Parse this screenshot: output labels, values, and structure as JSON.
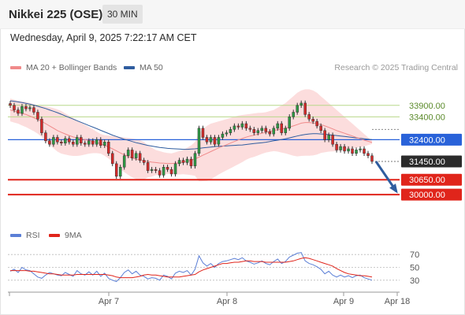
{
  "header": {
    "title": "Nikkei 225 (OSE)",
    "timeframe": "30 MIN",
    "datetime": "Wednesday, April 9, 2025 7:22:17 AM CET"
  },
  "legend": {
    "ma20": "MA 20 + Bollinger Bands",
    "ma50": "MA 50",
    "rsi": "RSI",
    "ma9": "9MA",
    "credit": "Research © 2025 Trading Central"
  },
  "colors": {
    "ma20": "#f08a8a",
    "bands": "#fcd9d9",
    "ma50": "#2f5d9f",
    "resistance": "#b8d88a",
    "pivot": "#2962d9",
    "support": "#e0251b",
    "rsi": "#5b7fd6",
    "rsi_ma": "#e0251b",
    "candle_up": "#2e9a44",
    "candle_down": "#d42a2a",
    "arrow": "#2f5d9f"
  },
  "chart_data": {
    "type": "candlestick",
    "x_ticks": [
      "Apr 7",
      "Apr 8",
      "Apr 9",
      "Apr 18"
    ],
    "ylim": [
      28800,
      35200
    ],
    "levels": [
      {
        "label": "33900.00",
        "value": 33900,
        "kind": "resistance"
      },
      {
        "label": "33400.00",
        "value": 33400,
        "kind": "resistance"
      },
      {
        "label": "32400.00",
        "value": 32400,
        "kind": "pivot"
      },
      {
        "label": "31450.00",
        "value": 31450,
        "kind": "last"
      },
      {
        "label": "30650.00",
        "value": 30650,
        "kind": "support"
      },
      {
        "label": "30000.00",
        "value": 30000,
        "kind": "support"
      }
    ],
    "close": [
      33900,
      33700,
      33550,
      33850,
      33750,
      33800,
      33600,
      33300,
      32700,
      32350,
      32200,
      32500,
      32300,
      32250,
      32450,
      32300,
      32200,
      32500,
      32250,
      32200,
      32350,
      32200,
      32400,
      32150,
      32300,
      31800,
      31350,
      30800,
      31200,
      31700,
      31950,
      31600,
      31800,
      31500,
      31400,
      31050,
      31100,
      31050,
      30850,
      31200,
      31100,
      30900,
      31350,
      31500,
      31400,
      31550,
      31250,
      31800,
      32900,
      32500,
      32300,
      32500,
      32200,
      32500,
      32650,
      32700,
      32850,
      33000,
      32950,
      33100,
      32900,
      32850,
      32700,
      32800,
      32900,
      32750,
      32650,
      32900,
      33100,
      32700,
      32900,
      33400,
      33600,
      33900,
      34000,
      33500,
      33300,
      33200,
      33000,
      32800,
      32400,
      32600,
      32200,
      31950,
      32100,
      31900,
      32000,
      31800,
      31950,
      32000,
      31800,
      31700,
      31450
    ],
    "ma20": [
      33700,
      33650,
      33600,
      33550,
      33500,
      33430,
      33360,
      33280,
      33200,
      33100,
      33000,
      32900,
      32800,
      32720,
      32650,
      32580,
      32520,
      32470,
      32430,
      32400,
      32370,
      32330,
      32280,
      32220,
      32150,
      32080,
      32000,
      31910,
      31820,
      31740,
      31670,
      31600,
      31550,
      31510,
      31480,
      31450,
      31420,
      31400,
      31380,
      31370,
      31360,
      31360,
      31370,
      31390,
      31420,
      31460,
      31500,
      31560,
      31640,
      31720,
      31800,
      31880,
      31960,
      32040,
      32110,
      32180,
      32250,
      32320,
      32390,
      32450,
      32510,
      32560,
      32600,
      32640,
      32680,
      32720,
      32760,
      32800,
      32840,
      32870,
      32900,
      32950,
      33000,
      33060,
      33120,
      33150,
      33150,
      33130,
      33100,
      33060,
      33000,
      32940,
      32870,
      32800,
      32740,
      32680,
      32620,
      32560,
      32500,
      32440,
      32380,
      32330,
      32280
    ],
    "bb_upper": [
      34200,
      34150,
      34100,
      34080,
      34050,
      34000,
      33950,
      33900,
      33880,
      33850,
      33820,
      33780,
      33720,
      33650,
      33550,
      33450,
      33350,
      33250,
      33150,
      33050,
      32950,
      32850,
      32750,
      32650,
      32600,
      32580,
      32560,
      32540,
      32520,
      32500,
      32480,
      32450,
      32420,
      32380,
      32300,
      32150,
      32050,
      31950,
      31900,
      31850,
      31820,
      31800,
      31850,
      31900,
      31950,
      32050,
      32150,
      32300,
      32700,
      32850,
      33000,
      33100,
      33150,
      33200,
      33250,
      33300,
      33350,
      33400,
      33450,
      33480,
      33500,
      33520,
      33550,
      33570,
      33580,
      33600,
      33650,
      33700,
      33800,
      33900,
      34000,
      34150,
      34300,
      34450,
      34550,
      34600,
      34600,
      34550,
      34450,
      34300,
      34150,
      34000,
      33850,
      33700,
      33550,
      33400,
      33250,
      33100,
      32950,
      32800,
      32650,
      32500,
      32350
    ],
    "bb_lower": [
      33200,
      33150,
      33100,
      33020,
      32950,
      32860,
      32770,
      32660,
      32520,
      32350,
      32180,
      32020,
      31880,
      31790,
      31750,
      31710,
      31690,
      31690,
      31710,
      31750,
      31790,
      31810,
      31810,
      31790,
      31700,
      31580,
      31440,
      31280,
      31120,
      30980,
      30860,
      30750,
      30680,
      30640,
      30660,
      30750,
      30790,
      30850,
      30860,
      30890,
      30900,
      30920,
      30890,
      30880,
      30890,
      30870,
      30850,
      30820,
      30580,
      30590,
      30600,
      30660,
      30770,
      30880,
      30970,
      31060,
      31150,
      31240,
      31330,
      31420,
      31520,
      31600,
      31650,
      31710,
      31780,
      31840,
      31870,
      31900,
      31880,
      31840,
      31800,
      31750,
      31700,
      31670,
      31690,
      31700,
      31700,
      31710,
      31750,
      31820,
      31850,
      31880,
      31890,
      31900,
      31930,
      31960,
      31990,
      32020,
      32050,
      32080,
      32110,
      32160,
      32210
    ],
    "ma50": [
      34100,
      34080,
      34050,
      34020,
      33990,
      33950,
      33910,
      33860,
      33810,
      33760,
      33700,
      33640,
      33580,
      33510,
      33440,
      33370,
      33300,
      33230,
      33160,
      33090,
      33020,
      32950,
      32880,
      32810,
      32740,
      32670,
      32600,
      32540,
      32480,
      32420,
      32370,
      32320,
      32270,
      32230,
      32190,
      32150,
      32120,
      32090,
      32060,
      32040,
      32020,
      32010,
      32000,
      31990,
      31980,
      31980,
      31990,
      32000,
      32020,
      32040,
      32060,
      32080,
      32100,
      32110,
      32120,
      32130,
      32140,
      32150,
      32160,
      32170,
      32190,
      32210,
      32230,
      32250,
      32270,
      32290,
      32320,
      32350,
      32380,
      32410,
      32440,
      32480,
      32520,
      32560,
      32600,
      32630,
      32650,
      32660,
      32660,
      32650,
      32640,
      32620,
      32600,
      32580,
      32560,
      32540,
      32520,
      32500,
      32480,
      32460,
      32440,
      32420,
      32400
    ],
    "rsi": {
      "ylim": [
        20,
        80
      ],
      "ticks": [
        "70",
        "50",
        "30"
      ],
      "rsi": [
        44,
        47,
        42,
        50,
        46,
        45,
        40,
        35,
        33,
        38,
        42,
        40,
        38,
        37,
        42,
        39,
        36,
        45,
        40,
        38,
        43,
        38,
        44,
        36,
        41,
        33,
        30,
        28,
        34,
        42,
        46,
        40,
        44,
        38,
        36,
        32,
        34,
        33,
        30,
        38,
        36,
        32,
        41,
        44,
        42,
        45,
        38,
        47,
        68,
        57,
        52,
        56,
        50,
        56,
        59,
        60,
        62,
        64,
        62,
        65,
        60,
        58,
        55,
        57,
        60,
        56,
        54,
        59,
        63,
        56,
        59,
        66,
        69,
        72,
        73,
        60,
        56,
        54,
        51,
        47,
        40,
        44,
        38,
        35,
        38,
        35,
        37,
        34,
        37,
        38,
        34,
        32,
        30
      ],
      "ma9": [
        45,
        45,
        45,
        45,
        45,
        44,
        44,
        43,
        42,
        41,
        40,
        40,
        39,
        38,
        38,
        38,
        38,
        39,
        39,
        39,
        39,
        39,
        39,
        39,
        39,
        38,
        37,
        35,
        34,
        34,
        34,
        34,
        35,
        36,
        38,
        39,
        38,
        38,
        37,
        36,
        35,
        35,
        35,
        35,
        36,
        37,
        38,
        39,
        43,
        46,
        48,
        50,
        52,
        54,
        56,
        56,
        57,
        58,
        58,
        59,
        60,
        60,
        59,
        59,
        59,
        58,
        58,
        58,
        58,
        58,
        58,
        59,
        60,
        62,
        64,
        65,
        64,
        62,
        60,
        58,
        56,
        54,
        52,
        48,
        45,
        42,
        40,
        39,
        38,
        37,
        37,
        36,
        35
      ]
    }
  }
}
